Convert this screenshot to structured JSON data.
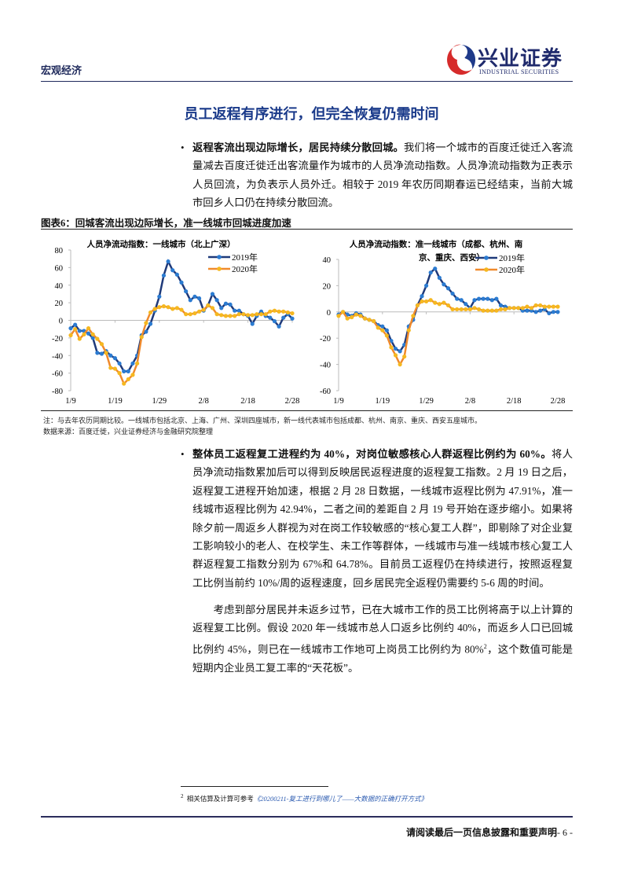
{
  "header": {
    "section": "宏观经济",
    "logo_cn": "兴业证券",
    "logo_en": "INDUSTRIAL SECURITIES",
    "logo_colors": {
      "red": "#d62b2b",
      "blue": "#1f3a8a"
    }
  },
  "title": "员工返程有序进行，但完全恢复仍需时间",
  "bullet1": {
    "bold": "返程客流出现边际增长，居民持续分散回城。",
    "text": "我们将一个城市的百度迁徙迁入客流量减去百度迁徙迁出客流量作为城市的人员净流动指数。人员净流动指数为正表示人员回流，为负表示人员外迁。相较于 2019 年农历同期春运已经结束，当前大城市回乡人口仍在持续分散回流。"
  },
  "figure": {
    "caption": "图表6：回城客流出现边际增长，准一线城市回城进度加速",
    "note": "注：与去年农历同期比较。一线城市包括北京、上海、广州、深圳四座城市，新一线代表城市包括成都、杭州、南京、重庆、西安五座城市。",
    "source": "数据来源：百度迁徙，兴业证券经济与金融研究院整理"
  },
  "chart_data": [
    {
      "type": "line",
      "title": "人员净流动指数：一线城市（北上广深）",
      "x_ticks": [
        "1/9",
        "1/19",
        "1/29",
        "2/8",
        "2/18",
        "2/28"
      ],
      "y_ticks": [
        "80",
        "60",
        "40",
        "20",
        "0",
        "-20",
        "-40",
        "-60",
        "-80"
      ],
      "ylim": [
        -80,
        80
      ],
      "x_range": [
        "1/9",
        "2/28"
      ],
      "legend_position": "top-right",
      "grid": false,
      "series": [
        {
          "name": "2019年",
          "color": "#1f3a7a",
          "marker_color": "#2b7bd1",
          "values": [
            -9,
            -5,
            -12,
            -12,
            -15,
            -20,
            -37,
            -38,
            -35,
            -40,
            -43,
            -49,
            -58,
            -58,
            -49,
            -40,
            -17,
            -13,
            -4,
            11,
            27,
            51,
            67,
            57,
            52,
            43,
            33,
            23,
            27,
            25,
            11,
            17,
            30,
            23,
            14,
            19,
            18,
            11,
            11,
            7,
            5,
            -4,
            5,
            10,
            5,
            3,
            -1,
            -7,
            3,
            7,
            2
          ]
        },
        {
          "name": "2020年",
          "color": "#f08a2c",
          "marker_color": "#f5b820",
          "values": [
            -17,
            -10,
            -21,
            -16,
            -9,
            -16,
            -21,
            -27,
            -37,
            -54,
            -55,
            -60,
            -72,
            -67,
            -62,
            -49,
            -19,
            -3,
            9,
            13,
            15,
            16,
            15,
            13,
            14,
            12,
            7,
            7,
            8,
            10,
            12,
            17,
            14,
            7,
            6,
            5,
            5,
            5,
            7,
            7,
            6,
            6,
            7,
            7,
            7,
            10,
            11,
            10,
            10,
            9,
            8
          ]
        }
      ]
    },
    {
      "type": "line",
      "title": "人员净流动指数：准一线城市（成都、杭州、南京、重庆、西安）",
      "title_line1": "人员净流动指数：准一线城市（成都、杭州、南",
      "title_line2": "京、重庆、西安）",
      "x_ticks": [
        "1/9",
        "1/19",
        "1/29",
        "2/8",
        "2/18",
        "2/28"
      ],
      "y_ticks": [
        "40",
        "20",
        "0",
        "-20",
        "-40",
        "-60"
      ],
      "ylim": [
        -60,
        40
      ],
      "x_range": [
        "1/9",
        "2/28"
      ],
      "legend_position": "top-right",
      "grid": false,
      "series": [
        {
          "name": "2019年",
          "color": "#1f3a7a",
          "marker_color": "#2b7bd1",
          "values": [
            -2,
            0,
            -2,
            -3,
            -1,
            -2,
            -5,
            -6,
            -7,
            -10,
            -11,
            -14,
            -22,
            -28,
            -30,
            -25,
            -11,
            -6,
            5,
            12,
            20,
            30,
            33,
            26,
            21,
            18,
            14,
            10,
            9,
            6,
            3,
            9,
            10,
            10,
            10,
            9,
            10,
            5,
            4,
            3,
            3,
            3,
            1,
            1,
            1,
            0,
            1,
            2,
            -1,
            0,
            0
          ]
        },
        {
          "name": "2020年",
          "color": "#f08a2c",
          "marker_color": "#f5b820",
          "values": [
            -3,
            0,
            -5,
            -4,
            -2,
            -3,
            -5,
            -6,
            -7,
            -12,
            -14,
            -18,
            -27,
            -33,
            -40,
            -34,
            -14,
            -3,
            5,
            8,
            8,
            9,
            7,
            6,
            7,
            5,
            2,
            2,
            2,
            2,
            2,
            3,
            2,
            1,
            1,
            1,
            1,
            2,
            2,
            3,
            3,
            3,
            3,
            4,
            3,
            5,
            5,
            4,
            4,
            4,
            4
          ]
        }
      ]
    }
  ],
  "bullet2": {
    "bold": "整体员工返程复工进程约为 40%，对岗位敏感核心人群返程比例约为 60%。",
    "text": "将人员净流动指数累加后可以得到反映居民返程进度的返程复工指数。2 月 19 日之后，返程复工进程开始加速，根据 2 月 28 日数据，一线城市返程比例为 47.91%，准一线城市返程比例为 42.94%，二者之间的差距自 2 月 19 号开始在逐步缩小。如果将除夕前一周返乡人群视为对在岗工作较敏感的“核心复工人群”，即剔除了对企业复工影响较小的老人、在校学生、未工作等群体，一线城市与准一线城市核心复工人群返程复工指数分别为 67%和 64.78%。目前员工返程仍在持续进行，按照返程复工比例当前约 10%/周的返程速度，回乡居民完全返程仍需要约 5-6 周的时间。"
  },
  "para3": {
    "text": "考虑到部分居民并未返乡过节，已在大城市工作的员工比例将高于以上计算的返程复工比例。假设 2020 年一线城市总人口返乡比例约 40%，而返乡人口已回城比例约 45%，则已在一线城市工作地可上岗员工比例约为 80%",
    "sup": "2",
    "tail": "，这个数值可能是短期内企业员工复工率的“天花板”。"
  },
  "footnote": {
    "num": "2",
    "text": "相关估算及计算可参考",
    "link": "《20200211-复工进行到哪儿了——大数据的正确打开方式》"
  },
  "footer": {
    "text": "请阅读最后一页信息披露和重要声明",
    "page": "- 6 -"
  }
}
